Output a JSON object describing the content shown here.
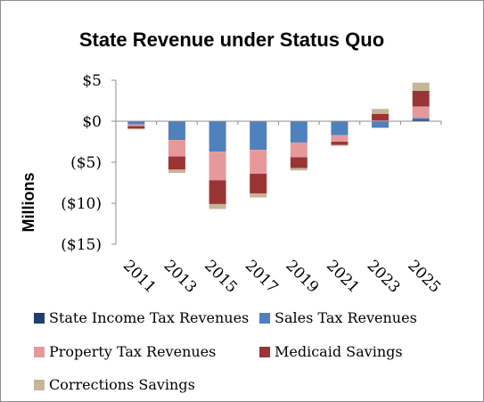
{
  "chart_data": {
    "type": "bar",
    "stacked": true,
    "title": "State Revenue under Status Quo",
    "xlabel": "",
    "ylabel": "Millions",
    "ylim": [
      -15,
      5
    ],
    "yticks": [
      5,
      0,
      -5,
      -10,
      -15
    ],
    "ytick_labels": [
      "$5",
      "$0",
      "($5)",
      "($10)",
      "($15)"
    ],
    "categories": [
      "2011",
      "2013",
      "2015",
      "2017",
      "2019",
      "2021",
      "2023",
      "2025"
    ],
    "grid": false,
    "legend_position": "bottom",
    "series": [
      {
        "name": "State Income Tax Revenues",
        "color": "#1f3d70",
        "values": [
          0,
          0,
          0,
          0,
          0,
          0,
          0,
          0.2
        ]
      },
      {
        "name": "Sales Tax Revenues",
        "color": "#4f81bd",
        "values": [
          -0.4,
          -2.3,
          -3.7,
          -3.5,
          -2.6,
          -1.7,
          -0.8,
          0.2
        ]
      },
      {
        "name": "Property Tax Revenues",
        "color": "#e6999b",
        "values": [
          -0.2,
          -2.0,
          -3.5,
          -2.9,
          -1.8,
          -0.8,
          0.1,
          1.4
        ]
      },
      {
        "name": "Medicaid Savings",
        "color": "#9b3535",
        "values": [
          -0.3,
          -1.6,
          -2.9,
          -2.4,
          -1.3,
          -0.4,
          0.8,
          1.9
        ]
      },
      {
        "name": "Corrections Savings",
        "color": "#c4b696",
        "values": [
          -0.1,
          -0.4,
          -0.6,
          -0.5,
          -0.3,
          -0.1,
          0.6,
          1.0
        ]
      }
    ]
  }
}
